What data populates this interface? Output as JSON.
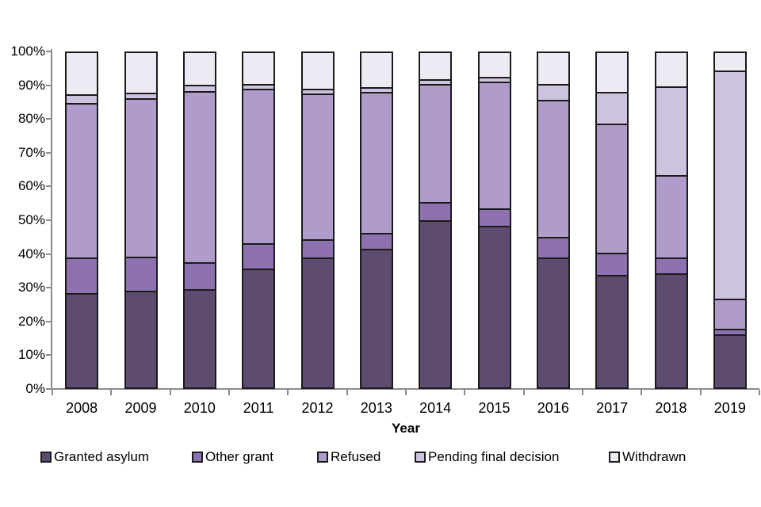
{
  "chart_data": {
    "type": "bar",
    "variant": "100%-stacked-column",
    "title": "",
    "xlabel": "Year",
    "ylabel": "",
    "ylim": [
      0,
      100
    ],
    "grid": false,
    "legend_position": "bottom",
    "y_tick_labels": [
      "0%",
      "10%",
      "20%",
      "30%",
      "40%",
      "50%",
      "60%",
      "70%",
      "80%",
      "90%",
      "100%"
    ],
    "categories": [
      "2008",
      "2009",
      "2010",
      "2011",
      "2012",
      "2013",
      "2014",
      "2015",
      "2016",
      "2017",
      "2018",
      "2019"
    ],
    "series": [
      {
        "name": "Granted asylum",
        "color": "#5d4b70",
        "values": [
          28.0,
          28.7,
          29.0,
          35.3,
          38.5,
          41.0,
          49.5,
          48.0,
          38.4,
          33.3,
          33.8,
          15.7
        ]
      },
      {
        "name": "Other grant",
        "color": "#8e72b0",
        "values": [
          10.5,
          10.0,
          8.0,
          7.5,
          5.5,
          4.7,
          5.5,
          5.0,
          6.1,
          6.7,
          4.7,
          1.6
        ]
      },
      {
        "name": "Refused",
        "color": "#b09cca",
        "values": [
          45.8,
          47.0,
          50.8,
          45.6,
          43.0,
          41.8,
          35.0,
          37.5,
          40.8,
          38.2,
          24.3,
          9.0
        ]
      },
      {
        "name": "Pending final decision",
        "color": "#cdc3df",
        "values": [
          2.5,
          1.6,
          1.8,
          1.6,
          1.5,
          1.5,
          1.3,
          1.5,
          4.5,
          9.4,
          26.4,
          67.5
        ]
      },
      {
        "name": "Withdrawn",
        "color": "#eeeaf3",
        "values": [
          13.2,
          12.7,
          10.4,
          10.0,
          11.5,
          11.0,
          8.7,
          8.0,
          10.2,
          12.4,
          10.8,
          6.2
        ]
      }
    ],
    "colors": {
      "axis": "#8c8c8c",
      "segment_border": "#1b1b1b",
      "background": "#ffffff",
      "text": "#000000"
    }
  }
}
